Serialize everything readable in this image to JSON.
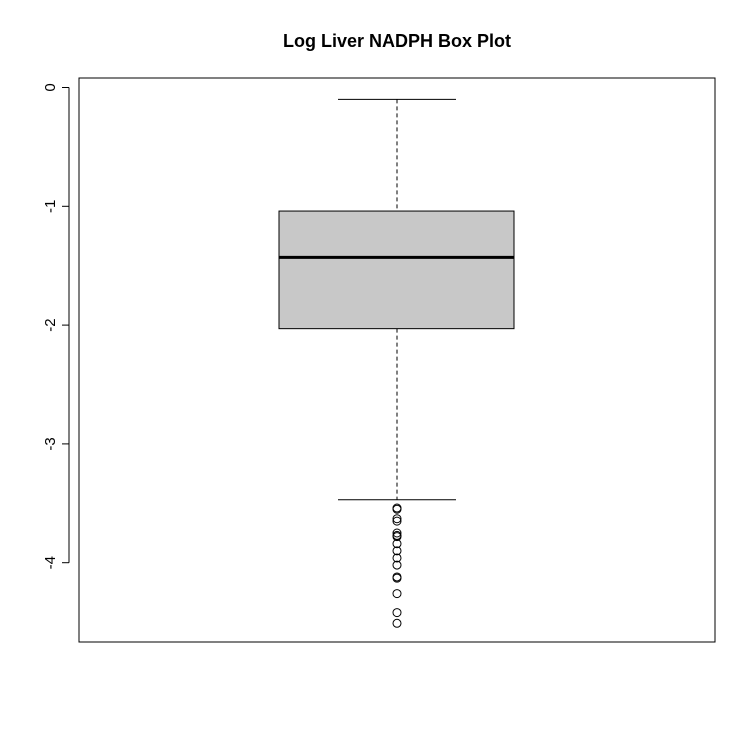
{
  "chart_data": {
    "type": "box",
    "title": "Log Liver NADPH Box Plot",
    "xlabel": "",
    "ylabel": "",
    "ylim": [
      -4.6,
      0.08
    ],
    "yticks": [
      0,
      -1,
      -2,
      -3,
      -4
    ],
    "ytick_labels": [
      "0",
      "-1",
      "-2",
      "-3",
      "-4"
    ],
    "box": {
      "whisker_high": -0.1,
      "q3": -1.04,
      "median": -1.43,
      "q1": -2.03,
      "whisker_low": -3.47,
      "outliers": [
        -3.54,
        -3.55,
        -3.63,
        -3.65,
        -3.75,
        -3.77,
        -3.78,
        -3.84,
        -3.9,
        -3.96,
        -4.02,
        -4.12,
        -4.13,
        -4.26,
        -4.42,
        -4.51
      ]
    },
    "colors": {
      "box_fill": "#c8c8c8",
      "stroke": "#000000"
    },
    "grid": false
  }
}
